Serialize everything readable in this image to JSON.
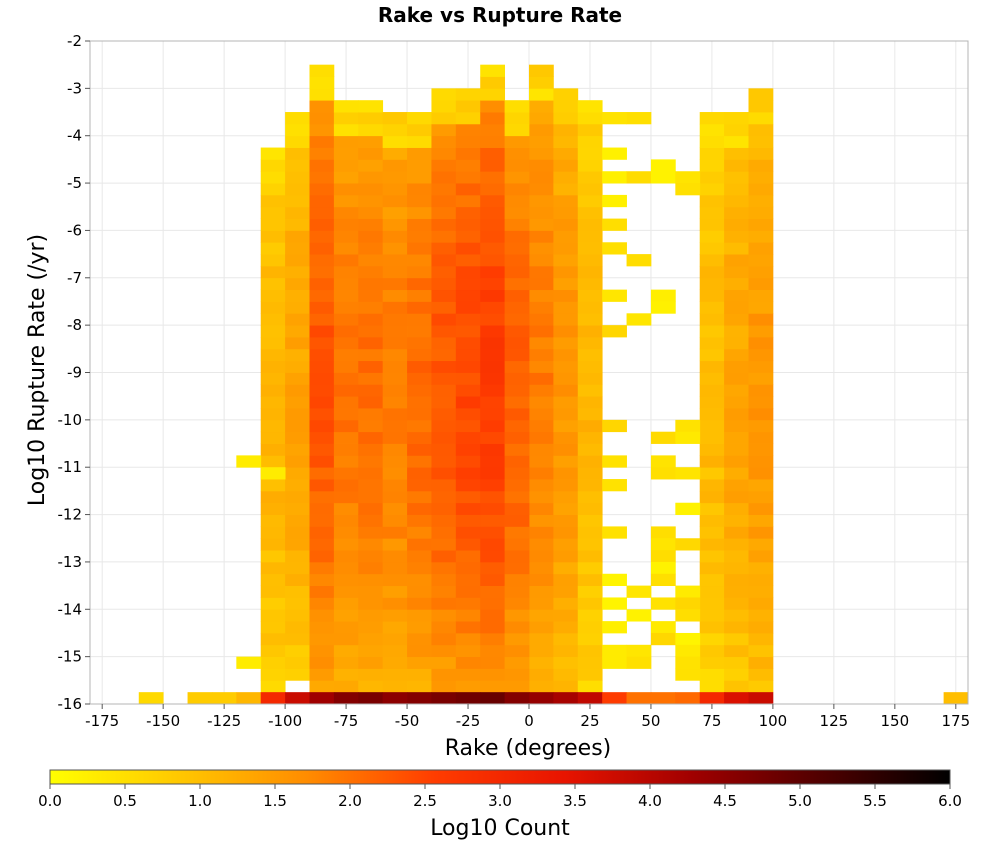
{
  "chart_data": {
    "type": "heatmap",
    "title": "Rake vs Rupture Rate",
    "xlabel": "Rake (degrees)",
    "ylabel": "Log10 Rupture Rate (/yr)",
    "colorbar_label": "Log10 Count",
    "xlim": [
      -180,
      180
    ],
    "ylim": [
      -16,
      -2
    ],
    "x_ticks": [
      -175,
      -150,
      -125,
      -100,
      -75,
      -50,
      -25,
      0,
      25,
      50,
      75,
      100,
      125,
      150,
      175
    ],
    "y_ticks": [
      -2,
      -3,
      -4,
      -5,
      -6,
      -7,
      -8,
      -9,
      -10,
      -11,
      -12,
      -13,
      -14,
      -15,
      -16
    ],
    "colorbar_ticks": [
      "0.0",
      "0.5",
      "1.0",
      "1.5",
      "2.0",
      "2.5",
      "3.0",
      "3.5",
      "4.0",
      "4.5",
      "5.0",
      "5.5",
      "6.0"
    ],
    "colorbar_range": [
      0,
      6
    ],
    "colormap": [
      "#ffff00",
      "#ffc800",
      "#ff8c00",
      "#ff3c00",
      "#e81400",
      "#a00000",
      "#500000",
      "#000000"
    ],
    "grid": true,
    "x_bin_width": 10,
    "y_bin_height": 0.25,
    "notes": "Log10 count per (rake, log10 rate) bin; sparse/irregular cells near x=30-70 and at extremes are approximate.",
    "empty_bins": [
      [
        100,
        -15.75
      ],
      [
        100,
        -14
      ],
      [
        40,
        -14
      ],
      [
        30,
        -12
      ],
      [
        30,
        -10.5
      ],
      [
        30,
        -9
      ],
      [
        30,
        -8
      ],
      [
        30,
        -7
      ]
    ]
  }
}
